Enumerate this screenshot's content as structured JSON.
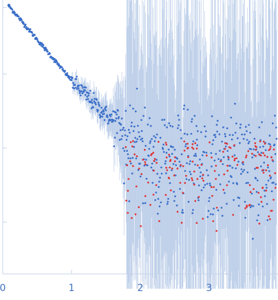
{
  "chart_data": {
    "type": "scatter",
    "title": "",
    "xlabel": "",
    "ylabel": "",
    "x_ticks": [
      "0",
      "1",
      "2",
      "3"
    ],
    "xlim": [
      0,
      4.0
    ],
    "y_scale": "log",
    "ylim_decades": [
      0,
      3.7
    ],
    "y_ticks": [
      0.7,
      1.7,
      2.7,
      3.6
    ],
    "y_tick_labels": false,
    "grid": false,
    "legend": "none",
    "colors": {
      "included": "#3a6ec8",
      "excluded": "#e03030",
      "error_bars": "#a9c0e2",
      "axis": "#c6d3e8",
      "tick_text": "#3f6fbf"
    },
    "series": [
      {
        "role": "included",
        "curve": {
          "segments": [
            {
              "x": [
                0.08,
                1.05
              ],
              "y": [
                3.63,
                2.56
              ]
            },
            {
              "x": [
                1.05,
                1.6
              ],
              "y": [
                2.56,
                2.06
              ]
            },
            {
              "x": [
                1.6,
                2.0
              ],
              "y": [
                2.06,
                1.72
              ]
            },
            {
              "x": [
                2.0,
                3.98
              ],
              "y": [
                1.6,
                1.6
              ]
            }
          ]
        }
      },
      {
        "role": "excluded",
        "x_range": [
          1.78,
          3.98
        ],
        "y_center": 1.35
      }
    ]
  }
}
